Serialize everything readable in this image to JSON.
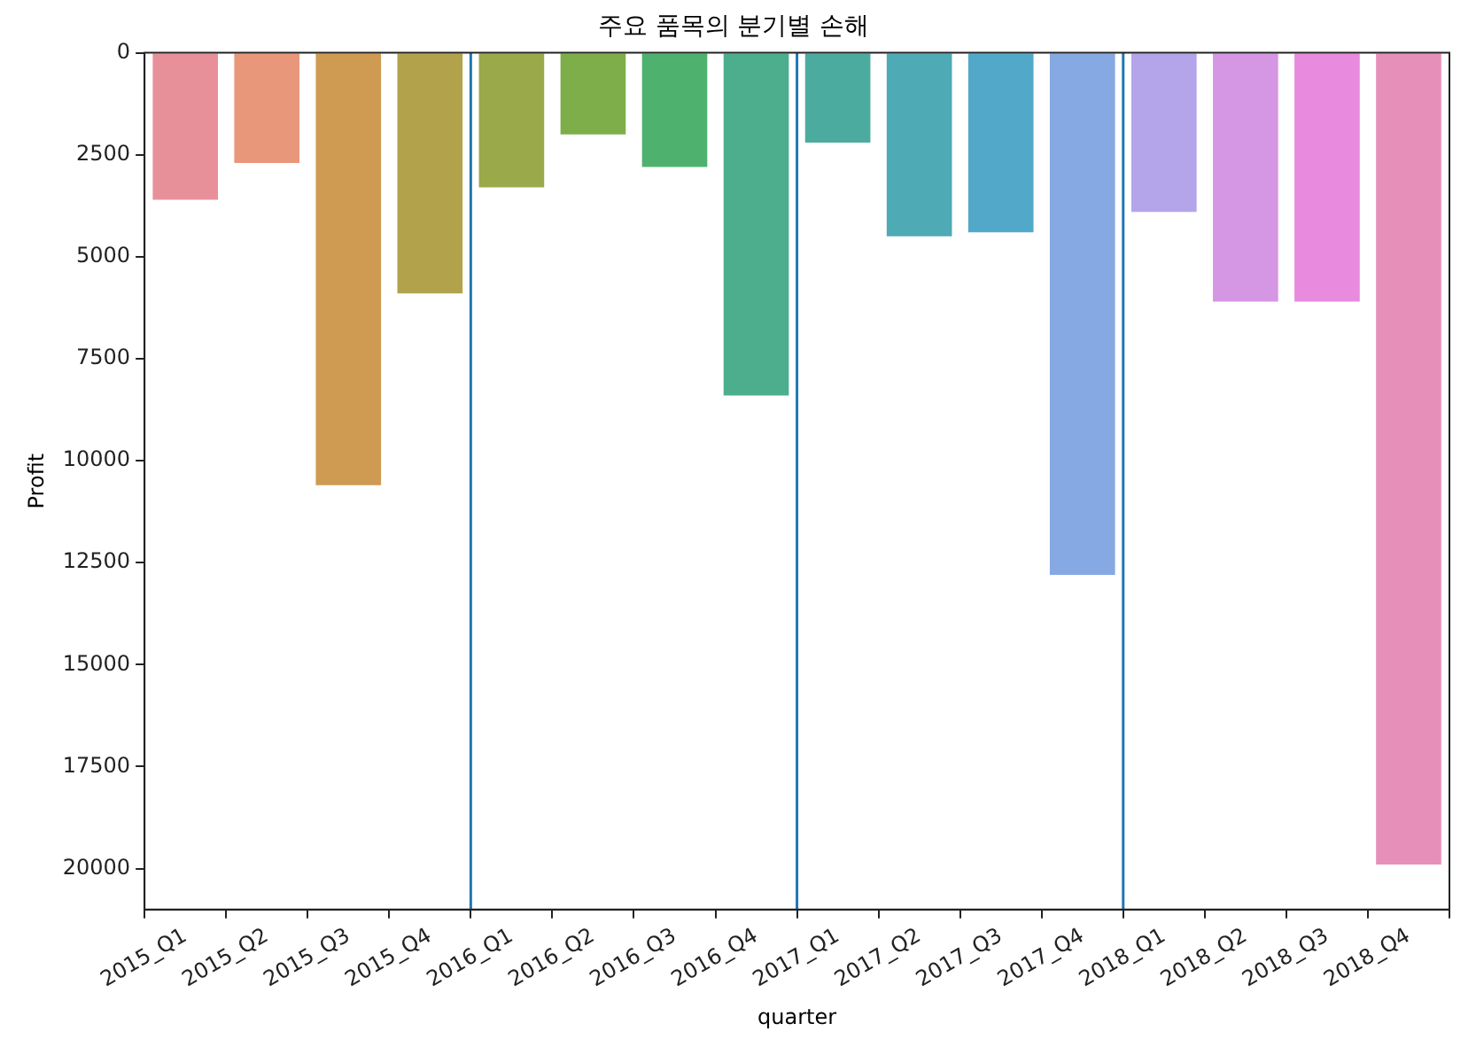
{
  "chart_data": {
    "type": "bar",
    "title": "주요 품목의 분기별 손해",
    "xlabel": "quarter",
    "ylabel": "Profit",
    "categories": [
      "2015_Q1",
      "2015_Q2",
      "2015_Q3",
      "2015_Q4",
      "2016_Q1",
      "2016_Q2",
      "2016_Q3",
      "2016_Q4",
      "2017_Q1",
      "2017_Q2",
      "2017_Q3",
      "2017_Q4",
      "2018_Q1",
      "2018_Q2",
      "2018_Q3",
      "2018_Q4"
    ],
    "values": [
      3600,
      2700,
      10600,
      5900,
      3300,
      2000,
      2800,
      8400,
      2200,
      4500,
      4400,
      12800,
      3900,
      6100,
      6100,
      19900
    ],
    "colors": [
      "#e8909a",
      "#e9977a",
      "#cf9a52",
      "#b2a24c",
      "#9aa94a",
      "#7eae4a",
      "#4eb16e",
      "#4cae8d",
      "#4cab9f",
      "#4eaab4",
      "#52a8c9",
      "#86a8e3",
      "#b4a4ea",
      "#d596e3",
      "#e88ade",
      "#e68fb8"
    ],
    "ylim": [
      21000,
      0
    ],
    "yticks": [
      0,
      2500,
      5000,
      7500,
      10000,
      12500,
      15000,
      17500,
      20000
    ],
    "grid": false,
    "legend": false
  }
}
